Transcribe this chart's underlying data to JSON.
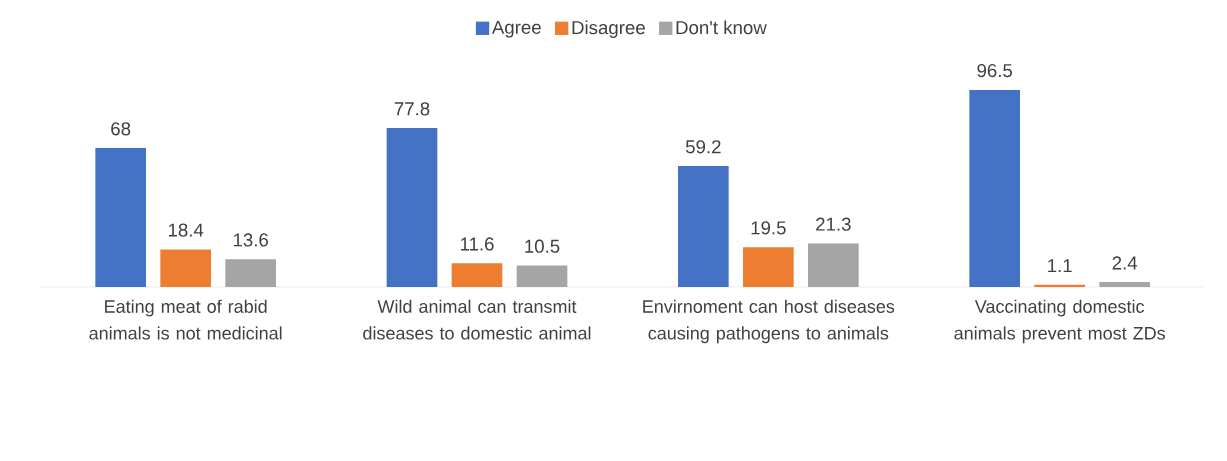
{
  "chart_data": {
    "type": "bar",
    "categories": [
      "Eating meat of rabid animals is not medicinal",
      "Wild animal can transmit diseases to domestic animal",
      "Envirnoment can host diseases causing pathogens to animals",
      "Vaccinating domestic animals prevent most ZDs"
    ],
    "series": [
      {
        "name": "Agree",
        "color": "#4472c4",
        "values": [
          68,
          77.8,
          59.2,
          96.5
        ]
      },
      {
        "name": "Disagree",
        "color": "#ed7d31",
        "values": [
          18.4,
          11.6,
          19.5,
          1.1
        ]
      },
      {
        "name": "Don't know",
        "color": "#a5a5a5",
        "values": [
          13.6,
          10.5,
          21.3,
          2.4
        ]
      }
    ],
    "data_labels": true,
    "legend": "top"
  }
}
